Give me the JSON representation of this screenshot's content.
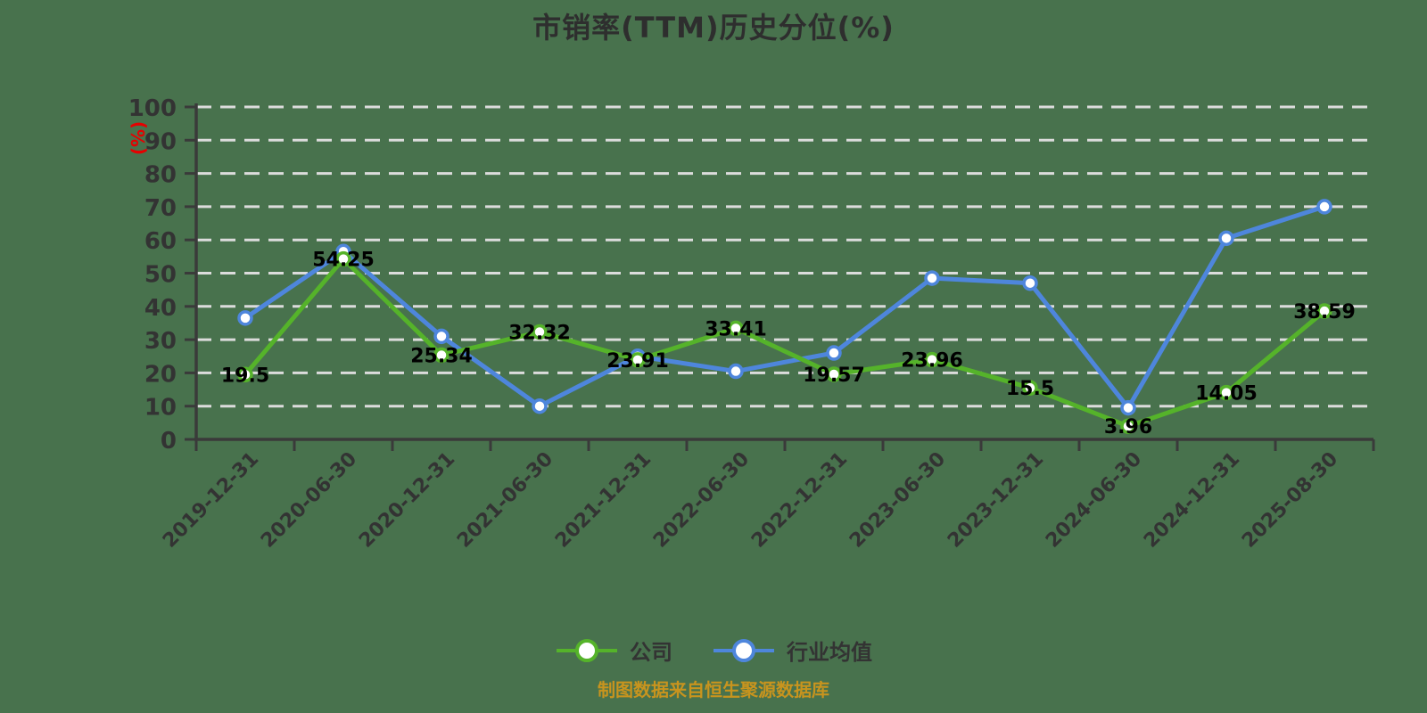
{
  "title": "市销率(TTM)历史分位(%)",
  "y_axis_unit": "(%)",
  "source_note": "制图数据来自恒生聚源数据库",
  "legend": [
    {
      "label": "公司",
      "color": "#55B32A"
    },
    {
      "label": "行业均值",
      "color": "#4E86DC"
    }
  ],
  "colors": {
    "background": "#48724D",
    "company_line": "#55B32A",
    "industry_line": "#4E86DC",
    "gridline": "#DCDCDC",
    "axis": "#3A3A3A",
    "tick_text": "#333333",
    "value_label": "#000000",
    "title_text": "#2E2E2E",
    "source_text": "#C8941E",
    "y_unit_text": "#E60000",
    "marker_fill": "#FFFFFF"
  },
  "chart_data": {
    "type": "line",
    "title": "市销率(TTM)历史分位(%)",
    "ylabel": "(%)",
    "ylim": [
      0,
      100
    ],
    "y_ticks": [
      0,
      10,
      20,
      30,
      40,
      50,
      60,
      70,
      80,
      90,
      100
    ],
    "grid": "horizontal dashed",
    "legend_position": "bottom center",
    "categories": [
      "2019-12-31",
      "2020-06-30",
      "2020-12-31",
      "2021-06-30",
      "2021-12-31",
      "2022-06-30",
      "2022-12-31",
      "2023-06-30",
      "2023-12-31",
      "2024-06-30",
      "2024-12-31",
      "2025-08-30"
    ],
    "series": [
      {
        "name": "公司",
        "color": "#55B32A",
        "values": [
          19.5,
          54.25,
          25.34,
          32.32,
          23.91,
          33.41,
          19.57,
          23.96,
          15.5,
          3.96,
          14.05,
          38.59
        ],
        "point_labels": [
          "19.5",
          "54.25",
          "25.34",
          "32.32",
          "23.91",
          "33.41",
          "19.57",
          "23.96",
          "15.5",
          "3.96",
          "14.05",
          "38.59"
        ],
        "labels_shown": true
      },
      {
        "name": "行业均值",
        "color": "#4E86DC",
        "values": [
          36.5,
          56.5,
          31,
          10,
          25,
          20.5,
          26,
          48.5,
          47,
          9.5,
          60.5,
          70
        ],
        "labels_shown": false
      }
    ]
  }
}
